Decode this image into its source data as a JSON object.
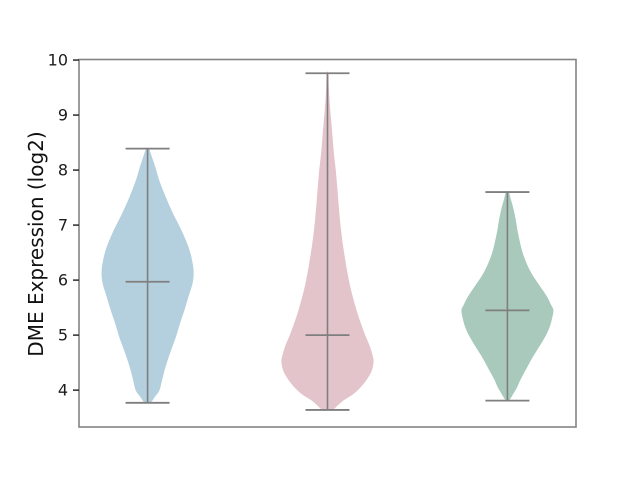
{
  "figure": {
    "background": "#ffffff"
  },
  "chart_data": {
    "type": "violin",
    "title": "",
    "xlabel": "",
    "ylabel": "DME Expression (log2)",
    "ylim": [
      3.33,
      10.01
    ],
    "yticks": [
      4,
      5,
      6,
      7,
      8,
      9,
      10
    ],
    "xticklabels": [],
    "grid": false,
    "legend_position": "none",
    "frame_color": "#848484",
    "line_color": "#7f7f7f",
    "tick_color": "#2b2b2b",
    "tick_label_color": "#1c1c1c",
    "axis_label_color": "#111111",
    "series": [
      {
        "fill_color": "#b4cfdd",
        "median": 5.97,
        "whisker_min": 3.77,
        "whisker_max": 8.39,
        "density_profile": [
          [
            8.39,
            0.03
          ],
          [
            8.25,
            0.09
          ],
          [
            8.05,
            0.17
          ],
          [
            7.8,
            0.26
          ],
          [
            7.5,
            0.4
          ],
          [
            7.2,
            0.56
          ],
          [
            6.9,
            0.74
          ],
          [
            6.6,
            0.89
          ],
          [
            6.35,
            0.97
          ],
          [
            6.15,
            1.0
          ],
          [
            5.95,
            0.98
          ],
          [
            5.7,
            0.89
          ],
          [
            5.45,
            0.8
          ],
          [
            5.2,
            0.7
          ],
          [
            4.95,
            0.61
          ],
          [
            4.7,
            0.5
          ],
          [
            4.45,
            0.4
          ],
          [
            4.2,
            0.32
          ],
          [
            4.0,
            0.26
          ],
          [
            3.88,
            0.16
          ],
          [
            3.77,
            0.06
          ]
        ]
      },
      {
        "fill_color": "#e3c4cb",
        "median": 5.0,
        "whisker_min": 3.64,
        "whisker_max": 9.76,
        "density_profile": [
          [
            9.76,
            0.02
          ],
          [
            9.5,
            0.03
          ],
          [
            9.2,
            0.05
          ],
          [
            8.9,
            0.08
          ],
          [
            8.6,
            0.11
          ],
          [
            8.3,
            0.14
          ],
          [
            8.0,
            0.18
          ],
          [
            7.7,
            0.21
          ],
          [
            7.4,
            0.24
          ],
          [
            7.1,
            0.27
          ],
          [
            6.8,
            0.31
          ],
          [
            6.5,
            0.36
          ],
          [
            6.2,
            0.42
          ],
          [
            5.9,
            0.49
          ],
          [
            5.6,
            0.58
          ],
          [
            5.3,
            0.69
          ],
          [
            5.0,
            0.82
          ],
          [
            4.8,
            0.92
          ],
          [
            4.6,
            0.99
          ],
          [
            4.5,
            1.0
          ],
          [
            4.35,
            0.96
          ],
          [
            4.2,
            0.86
          ],
          [
            4.05,
            0.72
          ],
          [
            3.92,
            0.55
          ],
          [
            3.82,
            0.36
          ],
          [
            3.72,
            0.22
          ],
          [
            3.64,
            0.1
          ]
        ]
      },
      {
        "fill_color": "#a8c9bb",
        "median": 5.45,
        "whisker_min": 3.81,
        "whisker_max": 7.6,
        "density_profile": [
          [
            7.6,
            0.03
          ],
          [
            7.45,
            0.08
          ],
          [
            7.3,
            0.13
          ],
          [
            7.1,
            0.18
          ],
          [
            6.9,
            0.22
          ],
          [
            6.7,
            0.27
          ],
          [
            6.5,
            0.33
          ],
          [
            6.3,
            0.42
          ],
          [
            6.1,
            0.54
          ],
          [
            5.9,
            0.7
          ],
          [
            5.7,
            0.86
          ],
          [
            5.55,
            0.95
          ],
          [
            5.45,
            1.0
          ],
          [
            5.3,
            0.97
          ],
          [
            5.15,
            0.92
          ],
          [
            5.0,
            0.84
          ],
          [
            4.8,
            0.7
          ],
          [
            4.6,
            0.55
          ],
          [
            4.4,
            0.42
          ],
          [
            4.2,
            0.29
          ],
          [
            4.05,
            0.21
          ],
          [
            3.95,
            0.14
          ],
          [
            3.88,
            0.09
          ],
          [
            3.81,
            0.03
          ]
        ]
      }
    ]
  }
}
